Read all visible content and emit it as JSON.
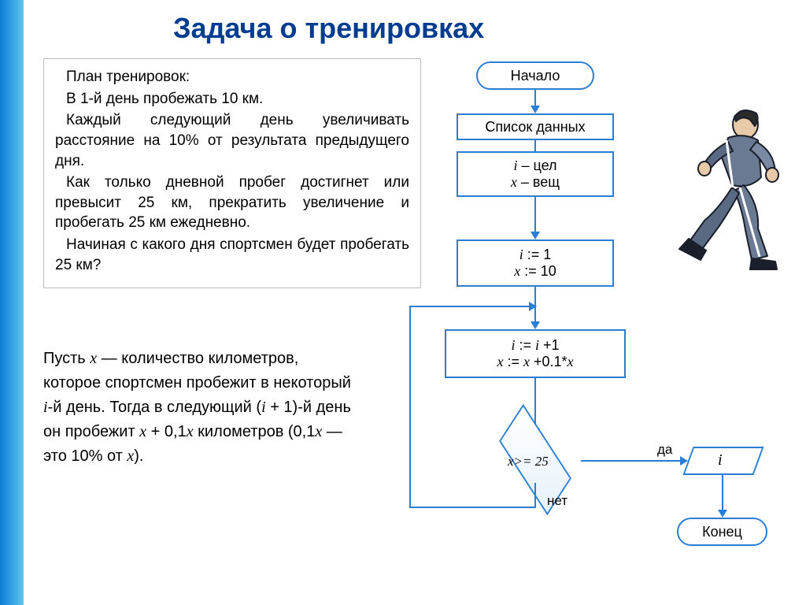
{
  "title": "Задача о тренировках",
  "problem": {
    "heading": "План тренировок:",
    "line1": "В 1-й день  пробежать 10 км.",
    "line2": "Каждый следующий день увеличивать расстояние на 10% от результата предыдущего дня.",
    "line3": "Как только дневной пробег достигнет или превысит 25 км, прекратить увеличение и пробегать 25 км ежедневно.",
    "line4": "Начиная с какого дня спортсмен будет пробегать 25 км?"
  },
  "explanation_html": "Пусть <span class=\"ital\">x</span> — количество километров, которое спортсмен пробежит в некоторый <span class=\"ital\">i</span>-й день. Тогда в следующий (<span class=\"ital\">i</span> + 1)-й день он пробежит <span class=\"ital\">x</span> + 0,1<span class=\"ital\">x</span> километров (0,1<span class=\"ital\">x</span> — это 10% от <span class=\"ital\">x</span>).",
  "flow": {
    "start": "Начало",
    "datalist": "Список данных",
    "decl_i": "i – цел",
    "decl_x": "x – вещ",
    "init_i": "i := 1",
    "init_x": "x := 10",
    "upd_i": "i := i +1",
    "upd_x": "x := x +0.1*x",
    "cond": "x>= 25",
    "yes": "да",
    "no": "нет",
    "out": "i",
    "end": "Конец"
  },
  "colors": {
    "title": "#003c8f",
    "node_border": "#2a7fd5",
    "bar_start": "#0b7bd6",
    "bar_end": "#5fc8ed"
  },
  "fonts": {
    "title_size": 36,
    "body_size": 19,
    "explain_size": 20,
    "node_size": 18
  }
}
